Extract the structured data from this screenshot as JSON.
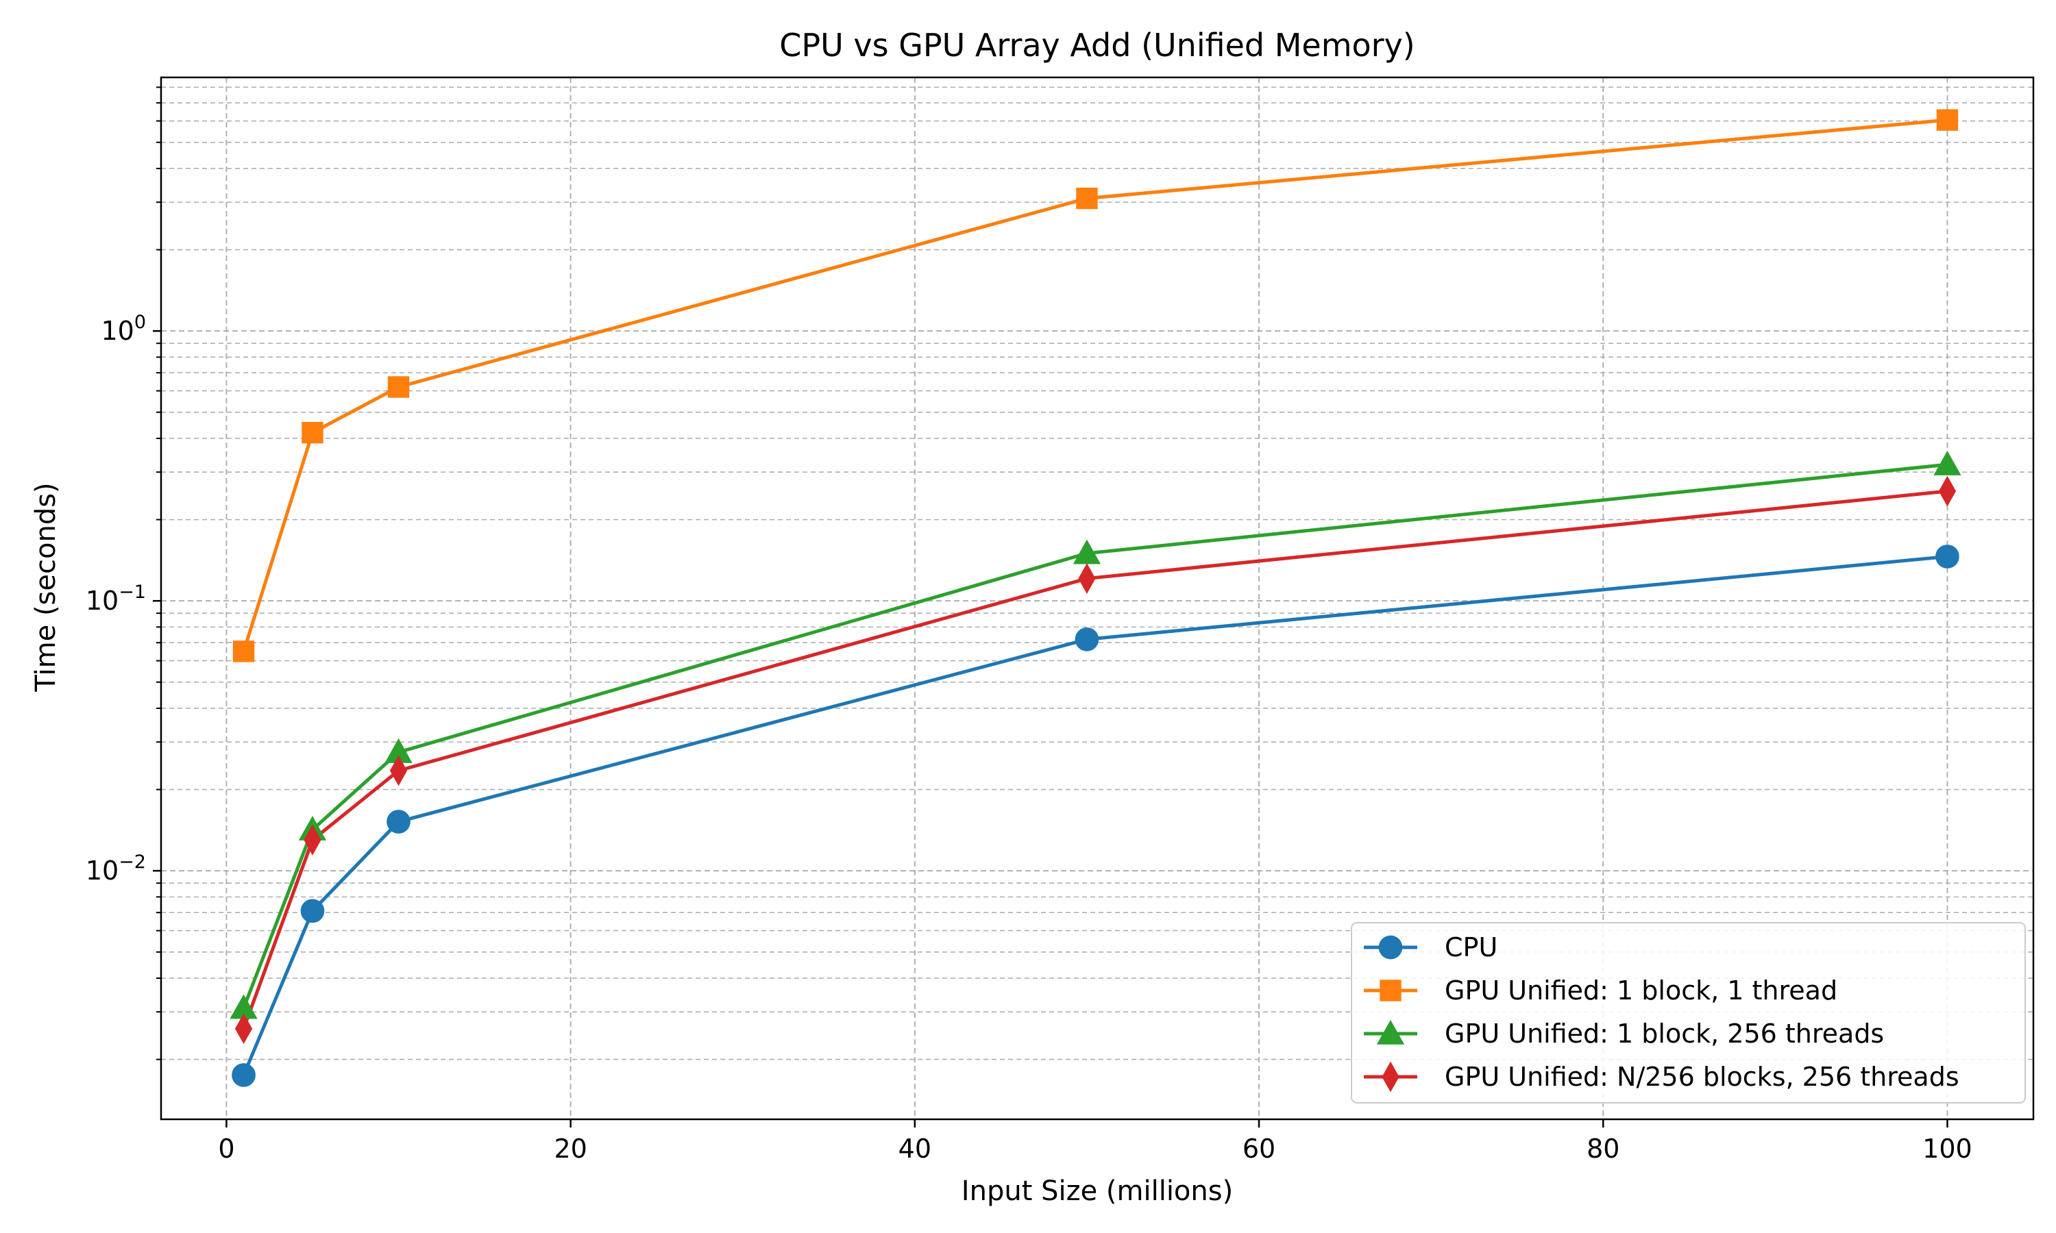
{
  "chart_data": {
    "type": "line",
    "title": "CPU vs GPU Array Add (Unified Memory)",
    "xlabel": "Input Size (millions)",
    "ylabel": "Time (seconds)",
    "xlim": [
      -3.8,
      105
    ],
    "ylim": [
      0.0012,
      8.7
    ],
    "yscale": "log",
    "grid": true,
    "legend_position": "lower-right",
    "x_ticks": [
      0,
      20,
      40,
      60,
      80,
      100
    ],
    "y_ticks": [
      {
        "value": 0.01,
        "base": "10",
        "exp": "−2"
      },
      {
        "value": 0.1,
        "base": "10",
        "exp": "−1"
      },
      {
        "value": 1,
        "base": "10",
        "exp": "0"
      }
    ],
    "x": [
      1,
      5,
      10,
      50,
      100
    ],
    "series": [
      {
        "name": "CPU",
        "color": "#1f77b4",
        "marker": "circle",
        "values": [
          0.00175,
          0.0071,
          0.0152,
          0.072,
          0.146
        ]
      },
      {
        "name": "GPU Unified: 1 block, 1 thread",
        "color": "#ff7f0e",
        "marker": "square",
        "values": [
          0.065,
          0.42,
          0.62,
          3.1,
          6.05
        ]
      },
      {
        "name": "GPU Unified: 1 block, 256 threads",
        "color": "#2ca02c",
        "marker": "triangle",
        "values": [
          0.0031,
          0.0142,
          0.0275,
          0.15,
          0.32
        ]
      },
      {
        "name": "GPU Unified: N/256 blocks, 256 threads",
        "color": "#d62728",
        "marker": "diamond",
        "values": [
          0.0026,
          0.013,
          0.0235,
          0.121,
          0.255
        ]
      }
    ]
  }
}
